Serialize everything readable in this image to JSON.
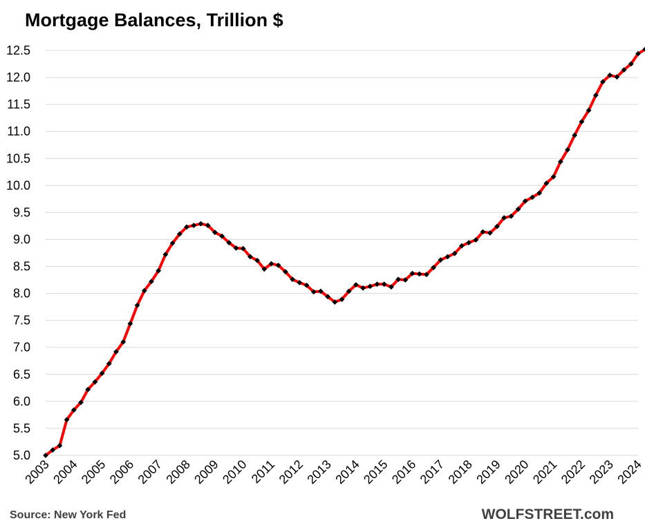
{
  "title": "Mortgage Balances, Trillion $",
  "source": "Source: New York Fed",
  "brand": "WOLFSTREET.com",
  "colors": {
    "line": "#ff0000",
    "marker": "#000000",
    "grid": "#d9d9d9",
    "axis_text": "#000000"
  },
  "chart_data": {
    "type": "line",
    "title": "Mortgage Balances, Trillion $",
    "xlabel": "",
    "ylabel": "",
    "ylim": [
      5.0,
      12.5
    ],
    "yticks": [
      "5.0",
      "5.5",
      "6.0",
      "6.5",
      "7.0",
      "7.5",
      "8.0",
      "8.5",
      "9.0",
      "9.5",
      "10.0",
      "10.5",
      "11.0",
      "11.5",
      "12.0",
      "12.5"
    ],
    "xticks": [
      "2003",
      "2004",
      "2005",
      "2006",
      "2007",
      "2008",
      "2009",
      "2010",
      "2011",
      "2012",
      "2013",
      "2014",
      "2015",
      "2016",
      "2017",
      "2018",
      "2019",
      "2020",
      "2021",
      "2022",
      "2023",
      "2024"
    ],
    "grid": "horizontal",
    "legend": "none",
    "x_start": "2003 Q1",
    "frequency": "quarterly",
    "series": [
      {
        "values": [
          5.0,
          5.1,
          5.18,
          5.66,
          5.84,
          5.98,
          6.22,
          6.36,
          6.52,
          6.7,
          6.92,
          7.1,
          7.44,
          7.78,
          8.05,
          8.22,
          8.42,
          8.72,
          8.93,
          9.1,
          9.23,
          9.26,
          9.29,
          9.26,
          9.13,
          9.06,
          8.94,
          8.84,
          8.83,
          8.68,
          8.61,
          8.45,
          8.55,
          8.52,
          8.4,
          8.26,
          8.2,
          8.15,
          8.03,
          8.04,
          7.94,
          7.84,
          7.89,
          8.04,
          8.16,
          8.1,
          8.13,
          8.17,
          8.17,
          8.12,
          8.26,
          8.25,
          8.37,
          8.36,
          8.35,
          8.48,
          8.62,
          8.68,
          8.74,
          8.88,
          8.94,
          8.99,
          9.14,
          9.12,
          9.24,
          9.4,
          9.43,
          9.56,
          9.71,
          9.78,
          9.86,
          10.04,
          10.16,
          10.44,
          10.66,
          10.93,
          11.18,
          11.39,
          11.67,
          11.92,
          12.04,
          12.01,
          12.14,
          12.25,
          12.44,
          12.52
        ]
      }
    ]
  }
}
